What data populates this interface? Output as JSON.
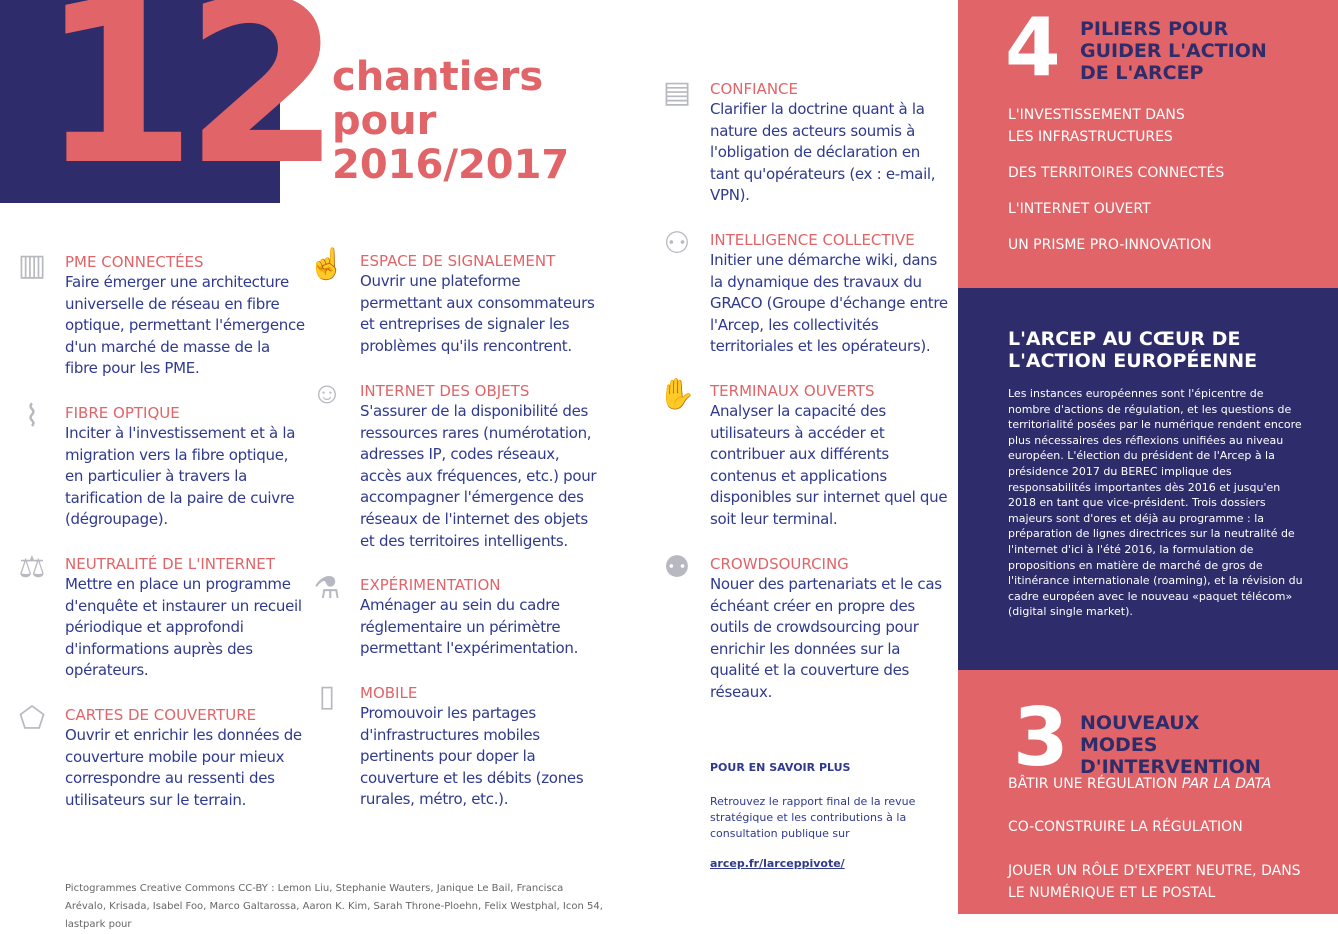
{
  "hero": {
    "number": "12",
    "title_lines": [
      "chantiers",
      "pour",
      "2016/2017"
    ]
  },
  "items": [
    {
      "icon": "buildings-icon",
      "glyph": "▥",
      "title": "PME connectées",
      "desc": "Faire émerger une architecture universelle de réseau en fibre optique, permettant l'émergence d'un marché de masse de la fibre pour les PME."
    },
    {
      "icon": "fiber-plug-icon",
      "glyph": "⌇",
      "title": "Fibre optique",
      "desc": "Inciter à l'investissement et à la migration vers la fibre optique, en particulier à travers la tarification de la paire de cuivre (dégroupage)."
    },
    {
      "icon": "scales-icon",
      "glyph": "⚖",
      "title": "Neutralité de l'internet",
      "desc": "Mettre en place un programme d'enquête et instaurer un recueil périodique et approfondi d'informations auprès des opérateurs."
    },
    {
      "icon": "france-map-icon",
      "glyph": "⬠",
      "title": "Cartes de couverture",
      "desc": "Ouvrir et enrichir les données de couverture mobile pour mieux correspondre au ressenti des utilisateurs sur le terrain."
    },
    {
      "icon": "report-hand-icon",
      "glyph": "☝",
      "title": "Espace de signalement",
      "desc": "Ouvrir une plateforme permettant aux consommateurs et entreprises de signaler les problèmes qu'ils rencontrent."
    },
    {
      "icon": "robot-icon",
      "glyph": "☺",
      "title": "Internet des objets",
      "desc": "S'assurer de la disponibilité des ressources rares (numérotation, adresses IP, codes réseaux, accès aux fréquences, etc.) pour accompagner l'émergence des réseaux de l'internet des objets et des territoires intelligents."
    },
    {
      "icon": "flask-icon",
      "glyph": "⚗",
      "title": "Expérimentation",
      "desc": "Aménager au sein du cadre réglementaire un périmètre permettant l'expérimentation."
    },
    {
      "icon": "mobile-wifi-icon",
      "glyph": "▯",
      "title": "Mobile",
      "desc": "Promouvoir les partages d'infrastructures mobiles pertinents pour doper la couverture et les débits (zones rurales, métro, etc.)."
    },
    {
      "icon": "certificate-icon",
      "glyph": "▤",
      "title": "Confiance",
      "desc": "Clarifier la doctrine quant à la nature des acteurs soumis à l'obligation de déclaration en tant qu'opérateurs (ex : e-mail, VPN)."
    },
    {
      "icon": "people-board-icon",
      "glyph": "⚇",
      "title": "Intelligence collective",
      "desc": "Initier une démarche wiki, dans la dynamique des travaux du GRACO (Groupe d'échange entre l'Arcep, les collectivités territoriales et les opérateurs)."
    },
    {
      "icon": "hand-device-icon",
      "glyph": "✋",
      "title": "Terminaux ouverts",
      "desc": "Analyser la capacité des utilisateurs à accéder et contribuer aux différents contenus et applications disponibles sur internet quel que soit leur terminal."
    },
    {
      "icon": "crowd-icon",
      "glyph": "⚉",
      "title": "Crowdsourcing",
      "desc": "Nouer des partenariats et le cas échéant créer en propre des outils de crowdsourcing pour enrichir les données sur la qualité et la couverture des réseaux."
    }
  ],
  "more": {
    "heading": "POUR EN SAVOIR PLUS",
    "text": "Retrouvez le rapport final de la revue stratégique et les contributions à la consultation publique sur",
    "link": "arcep.fr/larceppivote/"
  },
  "credits": "Pictogrammes Creative Commons CC-BY : Lemon Liu, Stephanie Wauters, Janique Le Bail, Francisca Arévalo, Krisada, Isabel Foo, Marco Galtarossa, Aaron K. Kim, Sarah Throne-Ploehn, Felix Westphal, Icon 54, lastpark pour",
  "pillars": {
    "number": "4",
    "heading": "PILIERS POUR GUIDER L'ACTION DE L'ARCEP",
    "items": [
      "L'investissement dans les infrastructures",
      "Des territoires connectés",
      "L'internet ouvert",
      "Un prisme pro-innovation"
    ]
  },
  "europe": {
    "heading": "L'ARCEP AU CŒUR DE L'ACTION EUROPÉENNE",
    "text": "Les instances européennes sont l'épicentre de nombre d'actions de régulation, et les questions de territorialité posées par le numérique rendent encore plus nécessaires des réflexions unifiées au niveau européen. L'élection du président de l'Arcep à la présidence 2017 du BEREC implique des responsabilités importantes dès 2016 et jusqu'en 2018 en tant que vice-président. Trois dossiers majeurs sont d'ores et déjà au programme : la préparation de lignes directrices sur la neutralité de l'internet d'ici à l'été 2016, la formulation de propositions en matière de marché de gros de l'itinérance internationale (roaming), et la révision du cadre européen avec le nouveau «paquet télécom» (digital single market)."
  },
  "modes": {
    "number": "3",
    "heading": "NOUVEAUX MODES D'INTERVENTION",
    "items": [
      {
        "text": "Bâtir une régulation ",
        "em": "par la data"
      },
      {
        "text": "Co-construire la régulation",
        "em": ""
      },
      {
        "text": "Jouer un rôle d'expert neutre, dans le numérique et le postal",
        "em": ""
      }
    ]
  },
  "colors": {
    "navy": "#2e2c6a",
    "coral": "#e06468",
    "text_blue": "#2f3a8f"
  }
}
